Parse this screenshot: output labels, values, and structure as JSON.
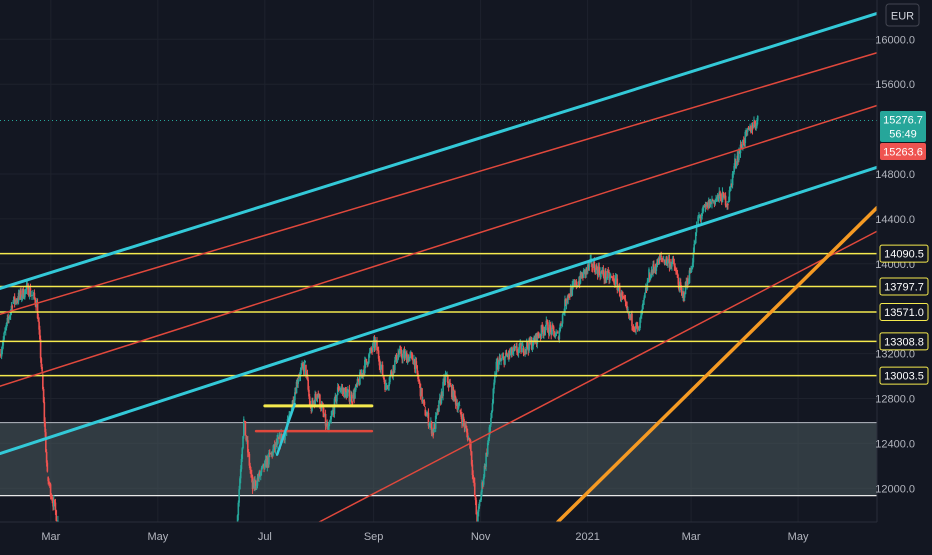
{
  "chart_data": {
    "type": "candlestick",
    "currency": "EUR",
    "xlim": [
      "2020-02-01",
      "2021-06-15"
    ],
    "ylim": [
      11700,
      16350
    ],
    "y_ticks": [
      {
        "value": 16000,
        "label": "16000.0"
      },
      {
        "value": 15600,
        "label": "15600.0"
      },
      {
        "value": 14800,
        "label": "14800.0"
      },
      {
        "value": 14400,
        "label": "14400.0"
      },
      {
        "value": 14000,
        "label": "14000.0"
      },
      {
        "value": 13200,
        "label": "13200.0"
      },
      {
        "value": 12800,
        "label": "12800.0"
      },
      {
        "value": 12400,
        "label": "12400.0"
      },
      {
        "value": 12000,
        "label": "12000.0"
      }
    ],
    "x_ticks": [
      {
        "date": "2020-03-01",
        "label": "Mar"
      },
      {
        "date": "2020-05-01",
        "label": "May"
      },
      {
        "date": "2020-07-01",
        "label": "Jul"
      },
      {
        "date": "2020-09-01",
        "label": "Sep"
      },
      {
        "date": "2020-11-01",
        "label": "Nov"
      },
      {
        "date": "2021-01-01",
        "label": "2021"
      },
      {
        "date": "2021-03-01",
        "label": "Mar"
      },
      {
        "date": "2021-05-01",
        "label": "May"
      }
    ],
    "price": {
      "last": "15276.7",
      "countdown": "56:49",
      "last_value": 15276.7,
      "second": "15263.6",
      "second_value": 15263.6
    },
    "horizontal_levels": [
      {
        "value": 14090.5,
        "label": "14090.5",
        "color": "#f5ea4e"
      },
      {
        "value": 13797.7,
        "label": "13797.7",
        "color": "#f5ea4e"
      },
      {
        "value": 13571.0,
        "label": "13571.0",
        "color": "#f5ea4e"
      },
      {
        "value": 13308.8,
        "label": "13308.8",
        "color": "#f5ea4e"
      },
      {
        "value": 13003.5,
        "label": "13003.5",
        "color": "#f5ea4e"
      }
    ],
    "zone": {
      "top": 12585,
      "bottom": 11935,
      "color": "#4a5a5c"
    },
    "series_points": [
      [
        "2020-02-01",
        13200
      ],
      [
        "2020-02-08",
        13650
      ],
      [
        "2020-02-17",
        13780
      ],
      [
        "2020-02-22",
        13650
      ],
      [
        "2020-02-25",
        13000
      ],
      [
        "2020-02-28",
        12100
      ],
      [
        "2020-03-05",
        11700
      ],
      [
        "2020-06-15",
        11700
      ],
      [
        "2020-06-19",
        12600
      ],
      [
        "2020-06-24",
        12000
      ],
      [
        "2020-07-01",
        12200
      ],
      [
        "2020-07-08",
        12400
      ],
      [
        "2020-07-13",
        12500
      ],
      [
        "2020-07-20",
        13000
      ],
      [
        "2020-07-24",
        13100
      ],
      [
        "2020-07-27",
        12700
      ],
      [
        "2020-07-31",
        12850
      ],
      [
        "2020-08-06",
        12500
      ],
      [
        "2020-08-12",
        12900
      ],
      [
        "2020-08-20",
        12800
      ],
      [
        "2020-08-27",
        13100
      ],
      [
        "2020-09-02",
        13300
      ],
      [
        "2020-09-08",
        12900
      ],
      [
        "2020-09-15",
        13200
      ],
      [
        "2020-09-24",
        13150
      ],
      [
        "2020-09-30",
        12700
      ],
      [
        "2020-10-05",
        12500
      ],
      [
        "2020-10-12",
        13000
      ],
      [
        "2020-10-20",
        12700
      ],
      [
        "2020-10-26",
        12400
      ],
      [
        "2020-10-30",
        11700
      ],
      [
        "2020-11-06",
        12500
      ],
      [
        "2020-11-10",
        13100
      ],
      [
        "2020-11-18",
        13200
      ],
      [
        "2020-11-25",
        13250
      ],
      [
        "2020-12-01",
        13300
      ],
      [
        "2020-12-08",
        13450
      ],
      [
        "2020-12-15",
        13350
      ],
      [
        "2020-12-20",
        13700
      ],
      [
        "2020-12-27",
        13850
      ],
      [
        "2021-01-03",
        14000
      ],
      [
        "2021-01-10",
        13900
      ],
      [
        "2021-01-17",
        13850
      ],
      [
        "2021-01-24",
        13550
      ],
      [
        "2021-01-30",
        13400
      ],
      [
        "2021-02-05",
        13900
      ],
      [
        "2021-02-12",
        14050
      ],
      [
        "2021-02-19",
        14000
      ],
      [
        "2021-02-24",
        13700
      ],
      [
        "2021-03-01",
        13950
      ],
      [
        "2021-03-05",
        14400
      ],
      [
        "2021-03-12",
        14550
      ],
      [
        "2021-03-18",
        14600
      ],
      [
        "2021-03-22",
        14550
      ],
      [
        "2021-03-26",
        14900
      ],
      [
        "2021-03-31",
        15100
      ],
      [
        "2021-04-05",
        15230
      ],
      [
        "2021-04-08",
        15276.7
      ]
    ],
    "trendlines": [
      {
        "color": "#33c9d8",
        "width": 3,
        "from": [
          "2020-02-01",
          13780
        ],
        "to": [
          "2021-06-15",
          16230
        ]
      },
      {
        "color": "#33c9d8",
        "width": 3,
        "from": [
          "2020-02-01",
          12310
        ],
        "to": [
          "2021-06-15",
          14860
        ]
      },
      {
        "color": "#e0483c",
        "width": 1.5,
        "from": [
          "2020-02-01",
          13550
        ],
        "to": [
          "2021-06-15",
          15880
        ]
      },
      {
        "color": "#e0483c",
        "width": 1.5,
        "from": [
          "2020-02-01",
          12910
        ],
        "to": [
          "2021-06-15",
          15410
        ]
      },
      {
        "color": "#e0483c",
        "width": 1.5,
        "from": [
          "2020-08-01",
          11700
        ],
        "to": [
          "2021-06-15",
          14290
        ]
      },
      {
        "color": "#f59a23",
        "width": 3.5,
        "from": [
          "2020-12-15",
          11700
        ],
        "to": [
          "2021-06-15",
          14500
        ]
      },
      {
        "color": "#f5ea4e",
        "width": 3,
        "from": [
          "2020-07-01",
          12735
        ],
        "to": [
          "2020-08-31",
          12735
        ]
      },
      {
        "color": "#e0483c",
        "width": 2.5,
        "from": [
          "2020-06-26",
          12510
        ],
        "to": [
          "2020-08-31",
          12510
        ]
      },
      {
        "color": "#33c9d8",
        "width": 2.5,
        "from": [
          "2020-07-08",
          12300
        ],
        "to": [
          "2020-07-18",
          12750
        ]
      }
    ]
  }
}
